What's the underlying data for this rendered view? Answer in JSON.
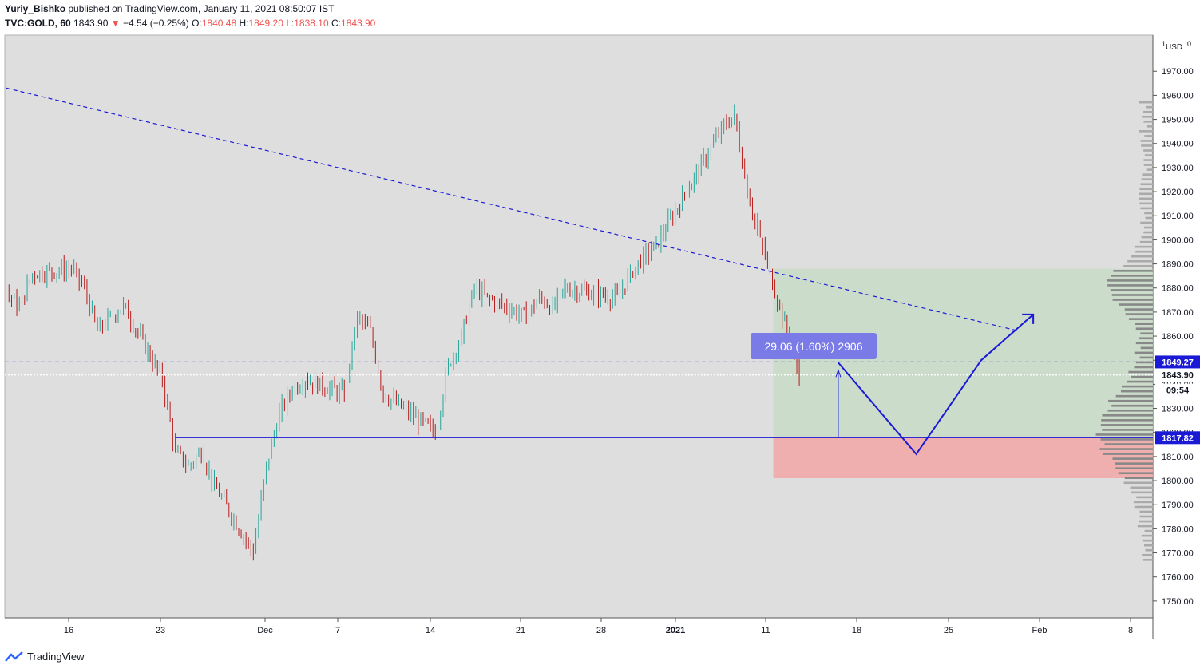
{
  "header": {
    "author": "Yuriy_Bishko",
    "published_text": "published on TradingView.com, January 11, 2021 08:50:07 IST",
    "symbol": "TVC:GOLD, 60",
    "last": "1843.90",
    "arrow": "▼",
    "change": "−4.54 (−0.25%)",
    "o_label": "O:",
    "o_val": "1840.48",
    "h_label": "H:",
    "h_val": "1849.20",
    "l_label": "L:",
    "l_val": "1838.10",
    "c_label": "C:",
    "c_val": "1843.90"
  },
  "footer": {
    "brand": "TradingView"
  },
  "colors": {
    "up": "#26a69a",
    "down": "#b71c1c",
    "line": "#1a1ad6",
    "target_zone": "#c8dcc8",
    "stop_zone": "#f2aaaa",
    "background": "#dedede"
  },
  "chart_data": {
    "type": "line",
    "title": "",
    "currency": "USD",
    "scale_marks": [
      "1",
      "0"
    ],
    "y_range": [
      1743,
      1985
    ],
    "y_ticks": [
      1750,
      1760,
      1770,
      1780,
      1790,
      1800,
      1810,
      1820,
      1830,
      1840,
      1850,
      1860,
      1870,
      1880,
      1890,
      1900,
      1910,
      1920,
      1930,
      1940,
      1950,
      1960,
      1970
    ],
    "x_labels": [
      "16",
      "23",
      "Dec",
      "7",
      "14",
      "21",
      "28",
      "2021",
      "11",
      "18",
      "25",
      "Feb",
      "8"
    ],
    "price_series": {
      "name": "",
      "x": [
        "Nov 11",
        "Nov 12",
        "Nov 13",
        "Nov 16",
        "Nov 17",
        "Nov 18",
        "Nov 19",
        "Nov 20",
        "Nov 23",
        "Nov 24",
        "Nov 25",
        "Nov 26",
        "Nov 27",
        "Nov 30",
        "Dec 1",
        "Dec 2",
        "Dec 3",
        "Dec 4",
        "Dec 7",
        "Dec 8",
        "Dec 9",
        "Dec 10",
        "Dec 11",
        "Dec 14",
        "Dec 15",
        "Dec 16",
        "Dec 17",
        "Dec 18",
        "Dec 21",
        "Dec 22",
        "Dec 23",
        "Dec 24",
        "Dec 28",
        "Dec 29",
        "Dec 30",
        "Dec 31",
        "Jan 4",
        "Jan 5",
        "Jan 6",
        "Jan 7",
        "Jan 8",
        "Jan 11"
      ],
      "y": [
        1878,
        1872,
        1886,
        1888,
        1880,
        1862,
        1868,
        1873,
        1842,
        1812,
        1806,
        1812,
        1798,
        1770,
        1806,
        1828,
        1838,
        1842,
        1836,
        1868,
        1862,
        1836,
        1832,
        1820,
        1848,
        1860,
        1880,
        1876,
        1868,
        1876,
        1872,
        1880,
        1876,
        1886,
        1893,
        1898,
        1936,
        1946,
        1952,
        1920,
        1900,
        1843.9
      ]
    },
    "price_labels": [
      {
        "label": "1849.27",
        "value": 1849.27
      },
      {
        "label": "1843.90",
        "value": 1843.9
      },
      {
        "label": "09:54"
      },
      {
        "label": "1817.82",
        "value": 1817.82
      }
    ],
    "trendline": {
      "x": [
        "Nov 11",
        "Jan 28"
      ],
      "y": [
        1963,
        1862
      ],
      "style": "dashed"
    },
    "support_line": {
      "value": 1817.82
    },
    "resistance_dashed": {
      "value": 1849.27
    },
    "position": {
      "entry": 1817.82,
      "target": 1888,
      "stop": 1801
    },
    "measure_label": "29.06 (1.60%) 2906",
    "projection": {
      "x": [
        "Jan 14",
        "Jan 20",
        "Jan 25",
        "Jan 29"
      ],
      "y": [
        1849,
        1811,
        1850,
        1869
      ]
    },
    "volume_profile": "right side horizontal histogram"
  }
}
